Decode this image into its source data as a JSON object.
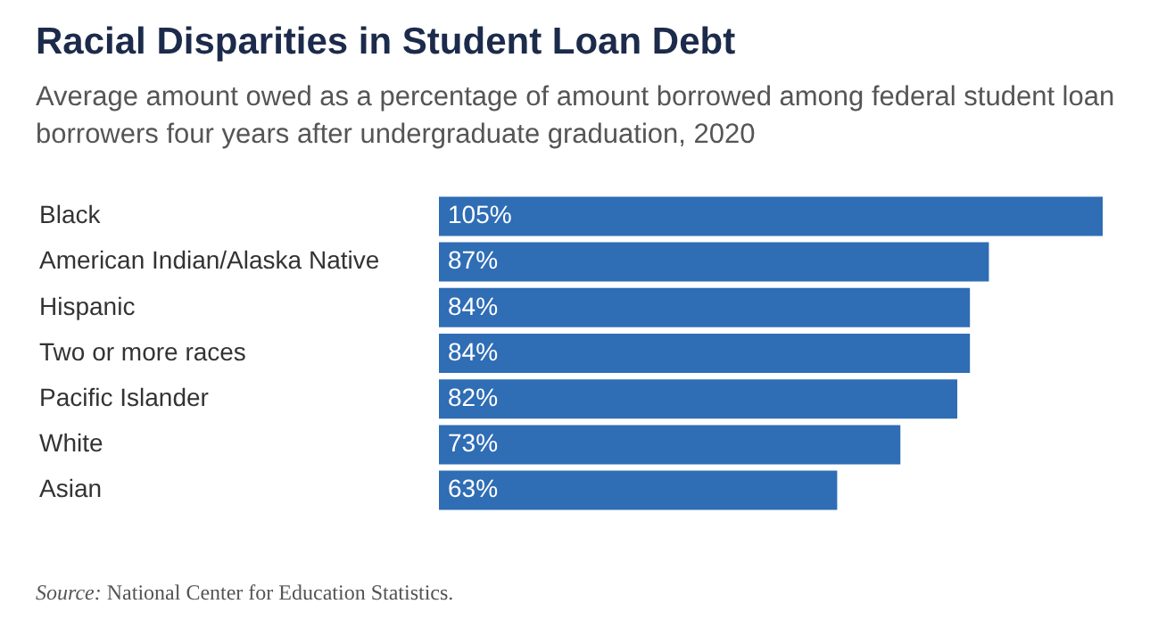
{
  "chart_data": {
    "type": "bar",
    "orientation": "horizontal",
    "title": "Racial Disparities in Student Loan Debt",
    "subtitle": "Average amount owed as a percentage of amount borrowed among federal student loan borrowers four years after undergraduate graduation, 2020",
    "categories": [
      "Black",
      "American Indian/Alaska Native",
      "Hispanic",
      "Two or more races",
      "Pacific Islander",
      "White",
      "Asian"
    ],
    "values": [
      105,
      87,
      84,
      84,
      82,
      73,
      63
    ],
    "value_labels": [
      "105%",
      "87%",
      "84%",
      "84%",
      "82%",
      "73%",
      "63%"
    ],
    "color": "#2f6db5",
    "grid": false,
    "legend": false,
    "annotations": [
      "Source: National Center for Education Statistics."
    ]
  }
}
